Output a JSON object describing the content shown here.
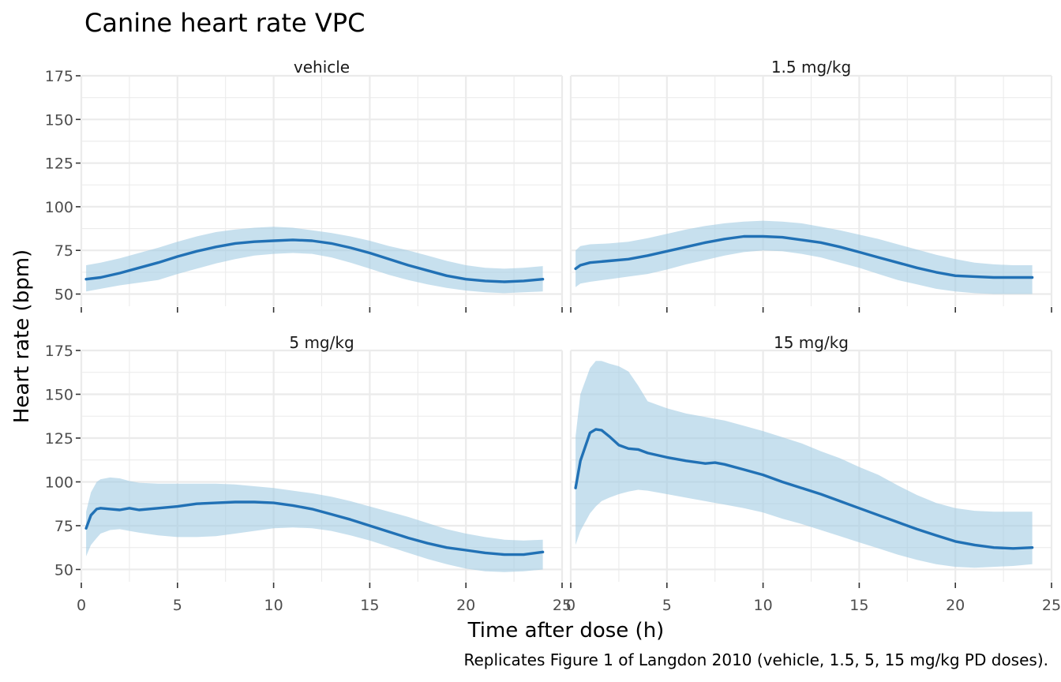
{
  "chart_data": {
    "type": "line",
    "title": "Canine heart rate VPC",
    "xlabel": "Time after dose (h)",
    "ylabel": "Heart rate (bpm)",
    "caption": "Replicates Figure 1 of Langdon 2010 (vehicle, 1.5, 5, 15 mg/kg PD doses).",
    "xlim": [
      0,
      25
    ],
    "ylim": [
      43,
      175
    ],
    "x_ticks": [
      0,
      5,
      10,
      15,
      20,
      25
    ],
    "y_ticks": [
      50,
      75,
      100,
      125,
      150,
      175
    ],
    "grid": true,
    "line_color": "#2171b5",
    "band_color": "#9ecae1",
    "panels": [
      {
        "name": "vehicle",
        "x": [
          0.25,
          1,
          2,
          3,
          4,
          5,
          6,
          7,
          8,
          9,
          10,
          11,
          12,
          13,
          14,
          15,
          16,
          17,
          18,
          19,
          20,
          21,
          22,
          23,
          24
        ],
        "median": [
          58.5,
          59.5,
          62,
          65,
          68,
          71.5,
          74.5,
          77,
          79,
          80,
          80.5,
          81,
          80.5,
          79,
          76.5,
          73.5,
          70,
          66.5,
          63.5,
          60.5,
          58.5,
          57.5,
          57,
          57.5,
          58.5
        ],
        "lower": [
          51.5,
          53,
          55,
          56.5,
          58,
          61.5,
          64.5,
          67.5,
          70,
          72,
          73,
          73.5,
          73,
          71,
          68,
          64.5,
          61,
          58,
          55.5,
          53.5,
          52,
          51,
          50.5,
          51,
          51.5
        ],
        "upper": [
          66.5,
          68,
          70.5,
          73.5,
          76.5,
          80,
          83,
          85.5,
          87,
          88,
          88.5,
          88,
          86.5,
          85,
          83,
          80.5,
          77.5,
          75,
          72,
          69,
          66.5,
          65,
          64.5,
          65,
          66
        ]
      },
      {
        "name": "1.5 mg/kg",
        "x": [
          0.25,
          0.5,
          1,
          2,
          3,
          4,
          5,
          6,
          7,
          8,
          9,
          10,
          11,
          12,
          13,
          14,
          15,
          16,
          17,
          18,
          19,
          20,
          21,
          22,
          23,
          24
        ],
        "median": [
          64.5,
          66.5,
          68,
          69,
          70,
          72,
          74.5,
          77,
          79.5,
          81.5,
          83,
          83,
          82.5,
          81,
          79.5,
          77,
          74,
          71,
          68,
          65,
          62.5,
          60.5,
          60,
          59.5,
          59.5,
          59.5
        ],
        "lower": [
          54,
          56,
          57,
          58.5,
          60,
          61.5,
          64,
          67,
          69.5,
          72,
          74,
          75,
          74.5,
          73,
          71,
          68,
          65,
          61.5,
          58,
          55.5,
          53,
          51.5,
          50.5,
          50,
          50,
          50
        ],
        "upper": [
          75,
          77.5,
          78.5,
          79,
          80,
          82,
          84.5,
          87,
          89,
          90.5,
          91.5,
          92,
          91.5,
          90.5,
          88.5,
          86.5,
          84,
          81.5,
          78.5,
          75.5,
          72.5,
          70,
          68,
          67,
          66.5,
          66.5
        ]
      },
      {
        "name": "5 mg/kg",
        "x": [
          0.25,
          0.5,
          0.8,
          1,
          1.5,
          2,
          2.5,
          3,
          4,
          5,
          6,
          7,
          8,
          9,
          10,
          11,
          12,
          13,
          14,
          15,
          16,
          17,
          18,
          19,
          20,
          21,
          22,
          23,
          24
        ],
        "median": [
          73.5,
          81,
          84.5,
          85,
          84.5,
          84,
          85,
          84,
          85,
          86,
          87.5,
          88,
          88.5,
          88.5,
          88,
          86.5,
          84.5,
          81.5,
          78.5,
          75,
          71.5,
          68,
          65,
          62.5,
          61,
          59.5,
          58.5,
          58.5,
          60
        ],
        "lower": [
          57.5,
          64,
          68,
          70.5,
          72.5,
          73,
          72,
          71,
          69.5,
          68.5,
          68.5,
          69,
          70.5,
          72,
          73.5,
          74,
          73.5,
          72,
          69.5,
          66.5,
          63,
          59.5,
          56,
          53,
          50.5,
          49,
          48.5,
          49,
          50
        ],
        "upper": [
          83,
          94,
          100,
          101.5,
          102.5,
          102,
          100.5,
          99.5,
          99,
          99,
          99,
          99,
          98.5,
          97.5,
          96.5,
          95,
          93.5,
          91.5,
          89,
          86,
          83,
          80,
          76.5,
          73,
          70.5,
          68.5,
          67,
          66.5,
          67
        ]
      },
      {
        "name": "15 mg/kg",
        "x": [
          0.25,
          0.5,
          1,
          1.3,
          1.6,
          2,
          2.5,
          3,
          3.5,
          4,
          5,
          6,
          7,
          7.5,
          8,
          9,
          10,
          11,
          12,
          13,
          14,
          15,
          16,
          17,
          18,
          19,
          20,
          21,
          22,
          23,
          24
        ],
        "median": [
          96.5,
          112,
          128,
          130,
          129.5,
          126,
          121,
          119,
          118.5,
          116.5,
          114,
          112,
          110.5,
          111,
          110,
          107,
          104,
          100,
          96.5,
          93,
          89,
          85,
          81,
          77,
          73,
          69.5,
          66,
          64,
          62.5,
          62,
          62.5
        ],
        "lower": [
          64,
          72,
          82,
          86,
          89,
          91,
          93,
          94.5,
          95.5,
          95,
          93,
          91,
          89,
          88,
          87,
          85,
          82.5,
          79,
          76,
          72.5,
          69,
          65.5,
          62,
          58.5,
          55.5,
          53,
          51.5,
          51,
          51.5,
          52,
          53
        ],
        "upper": [
          126,
          150,
          165,
          169,
          169,
          167.5,
          166,
          163,
          155,
          146,
          142,
          139,
          137,
          136,
          135,
          132,
          129,
          125.5,
          122,
          117.5,
          113.5,
          108.5,
          104,
          98,
          92.5,
          88,
          85,
          83.5,
          83,
          83,
          83
        ]
      }
    ]
  }
}
